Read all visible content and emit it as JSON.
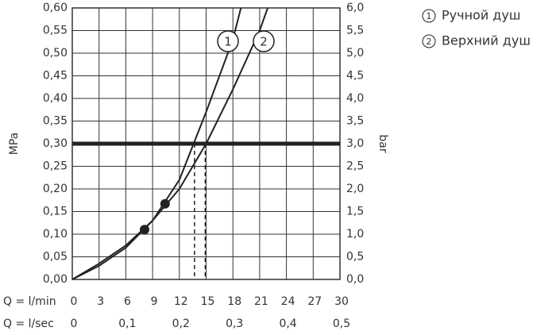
{
  "chart_data": {
    "type": "line",
    "xlabel": "Q = l/min",
    "x2label": "Q = l/sec",
    "ylabel": "MPa",
    "y2label": "bar",
    "xlim": [
      0,
      30
    ],
    "xticks": [
      0,
      3,
      6,
      9,
      12,
      15,
      18,
      21,
      24,
      27,
      30
    ],
    "x2lim": [
      0,
      0.5
    ],
    "x2ticks": [
      0,
      {
        "value": 0.1,
        "label": "0,1"
      },
      {
        "value": 0.2,
        "label": "0,2"
      },
      {
        "value": 0.3,
        "label": "0,3"
      },
      {
        "value": 0.4,
        "label": "0,4"
      },
      {
        "value": 0.5,
        "label": "0,5"
      }
    ],
    "ylim": [
      0,
      0.6
    ],
    "yticks": [
      {
        "value": 0,
        "label": "0,00"
      },
      {
        "value": 0.05,
        "label": "0,05"
      },
      {
        "value": 0.1,
        "label": "0,10"
      },
      {
        "value": 0.15,
        "label": "0,15"
      },
      {
        "value": 0.2,
        "label": "0,20"
      },
      {
        "value": 0.25,
        "label": "0,25"
      },
      {
        "value": 0.3,
        "label": "0,30"
      },
      {
        "value": 0.35,
        "label": "0,35"
      },
      {
        "value": 0.4,
        "label": "0,40"
      },
      {
        "value": 0.45,
        "label": "0,45"
      },
      {
        "value": 0.5,
        "label": "0,50"
      },
      {
        "value": 0.55,
        "label": "0,55"
      },
      {
        "value": 0.6,
        "label": "0,60"
      }
    ],
    "y2lim": [
      0,
      6
    ],
    "y2ticks": [
      {
        "value": 0,
        "label": "0,0"
      },
      {
        "value": 0.5,
        "label": "0,5"
      },
      {
        "value": 1,
        "label": "1,0"
      },
      {
        "value": 1.5,
        "label": "1,5"
      },
      {
        "value": 2,
        "label": "2,0"
      },
      {
        "value": 2.5,
        "label": "2,5"
      },
      {
        "value": 3,
        "label": "3,0"
      },
      {
        "value": 3.5,
        "label": "3,5"
      },
      {
        "value": 4,
        "label": "4,0"
      },
      {
        "value": 4.5,
        "label": "4,5"
      },
      {
        "value": 5,
        "label": "5,0"
      },
      {
        "value": 5.5,
        "label": "5,5"
      },
      {
        "value": 6,
        "label": "6,0"
      }
    ],
    "grid": true,
    "color": "#333333",
    "reference_y": 0.3,
    "reference_x": [
      13.7,
      14.9
    ],
    "series": [
      {
        "name": "Ручной душ",
        "label": "1",
        "x": [
          0,
          3,
          6,
          9,
          12,
          15,
          18,
          18.9
        ],
        "values": [
          0,
          0.03,
          0.07,
          0.13,
          0.22,
          0.37,
          0.53,
          0.6
        ]
      },
      {
        "name": "Верхний душ",
        "label": "2",
        "x": [
          0,
          3,
          6,
          9,
          12,
          15,
          18,
          21,
          21.9
        ],
        "values": [
          0,
          0.035,
          0.075,
          0.13,
          0.2,
          0.3,
          0.42,
          0.55,
          0.6
        ]
      }
    ],
    "points": {
      "x": [
        8.1,
        10.4
      ],
      "values": [
        0.11,
        0.167
      ]
    }
  }
}
